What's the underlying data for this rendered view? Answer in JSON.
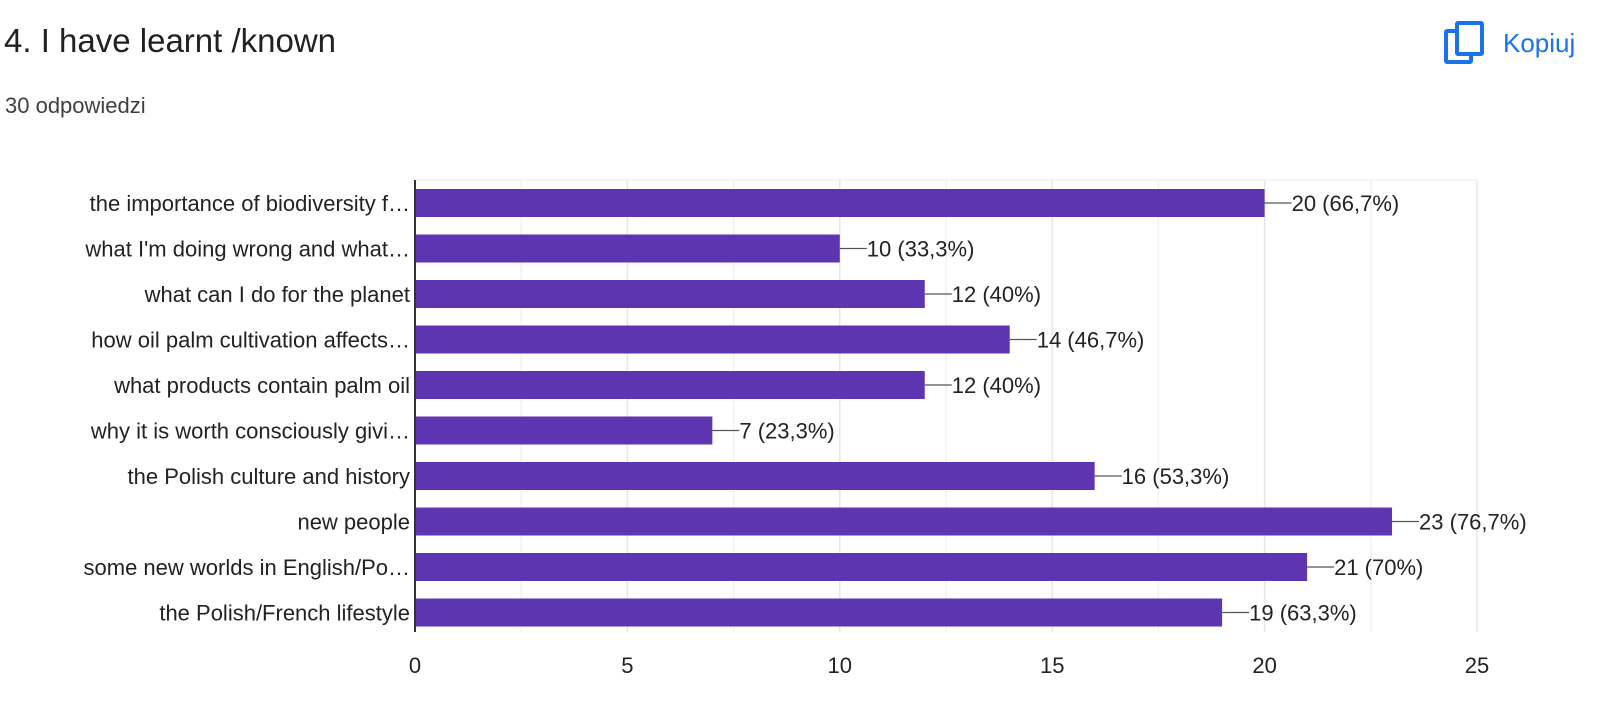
{
  "question": {
    "title": "4. I have learnt /known",
    "responses": "30 odpowiedzi"
  },
  "copy_button": {
    "label": "Kopiuj",
    "icon": "copy-icon"
  },
  "colors": {
    "bar": "#5e35b1",
    "accent": "#1a73e8",
    "grid": "#ebebeb",
    "axis": "#333333",
    "text": "#222222"
  },
  "chart_data": {
    "type": "bar",
    "orientation": "horizontal",
    "categories": [
      "the importance of biodiversity f…",
      "what I'm doing wrong and what…",
      "what can I do for the planet",
      "how oil palm cultivation affects…",
      "what products contain palm oil",
      "why it is worth consciously givi…",
      "the Polish culture and history",
      "new people",
      "some new worlds in English/Po…",
      "the Polish/French lifestyle"
    ],
    "values": [
      20,
      10,
      12,
      14,
      12,
      7,
      16,
      23,
      21,
      19
    ],
    "data_labels": [
      "20 (66,7%)",
      "10 (33,3%)",
      "12 (40%)",
      "14 (46,7%)",
      "12 (40%)",
      "7 (23,3%)",
      "16 (53,3%)",
      "23 (76,7%)",
      "21 (70%)",
      "19 (63,3%)"
    ],
    "xlim": [
      0,
      25
    ],
    "x_ticks": [
      0,
      5,
      10,
      15,
      20,
      25
    ],
    "x_tick_labels": [
      "0",
      "5",
      "10",
      "15",
      "20",
      "25"
    ],
    "grid": true,
    "title": "",
    "xlabel": "",
    "ylabel": ""
  }
}
